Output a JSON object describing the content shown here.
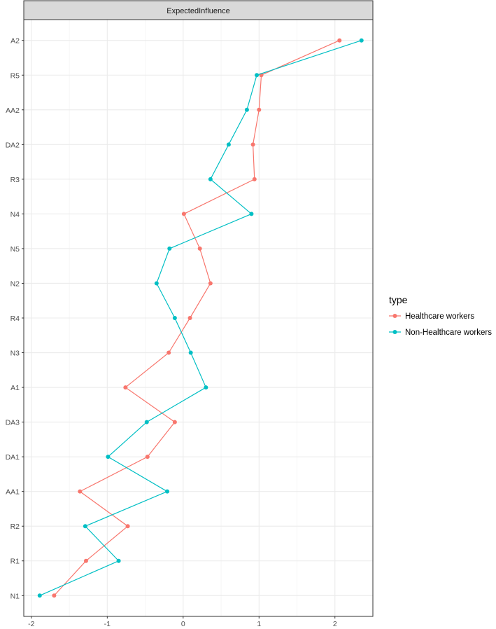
{
  "chart_data": {
    "type": "line",
    "facet_label": "ExpectedInfluence",
    "categories": [
      "N1",
      "R1",
      "R2",
      "AA1",
      "DA1",
      "DA3",
      "A1",
      "N3",
      "R4",
      "N2",
      "N5",
      "N4",
      "R3",
      "DA2",
      "AA2",
      "R5",
      "A2"
    ],
    "xlim": [
      -2.1,
      2.5
    ],
    "xticks": [
      -2,
      -1,
      0,
      1,
      2
    ],
    "xtick_labels": [
      "-2",
      "-1",
      "0",
      "1",
      "2"
    ],
    "grid": true,
    "legend": {
      "title": "type",
      "position": "right"
    },
    "series": [
      {
        "name": "Healthcare workers",
        "color": "#F8766D",
        "values": [
          -1.7,
          -1.28,
          -0.73,
          -1.36,
          -0.47,
          -0.11,
          -0.76,
          -0.19,
          0.09,
          0.36,
          0.22,
          0.01,
          0.94,
          0.92,
          1.0,
          1.03,
          2.06
        ]
      },
      {
        "name": "Non-Healthcare workers",
        "color": "#00BFC4",
        "values": [
          -1.89,
          -0.85,
          -1.29,
          -0.21,
          -0.99,
          -0.48,
          0.3,
          0.1,
          -0.11,
          -0.35,
          -0.18,
          0.9,
          0.36,
          0.6,
          0.84,
          0.97,
          2.35
        ]
      }
    ]
  }
}
